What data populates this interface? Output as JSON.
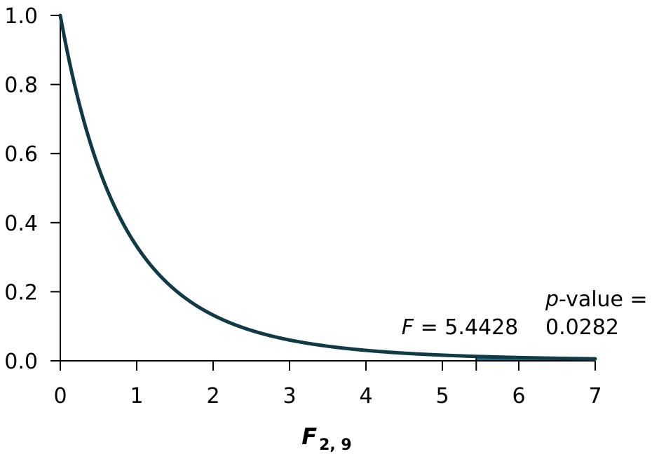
{
  "chart_data": {
    "type": "line",
    "title": "",
    "xlabel": {
      "symbol": "F",
      "subscript": "2, 9"
    },
    "ylabel": "",
    "xlim": [
      0,
      7
    ],
    "ylim": [
      0,
      1.0
    ],
    "x_ticks": [
      "0",
      "1",
      "2",
      "3",
      "4",
      "5",
      "6",
      "7"
    ],
    "y_ticks": [
      "0.0",
      "0.2",
      "0.4",
      "0.6",
      "0.8",
      "1.0"
    ],
    "grid": false,
    "series": [
      {
        "distribution": "F",
        "df1": 2,
        "df2": 9,
        "x_start": 0,
        "x_end": 7,
        "color": "#0f3a46"
      }
    ],
    "shaded_region": {
      "x_from": 5.4428,
      "x_to": 7,
      "color": "#1f6f87"
    },
    "annotations": {
      "f_stat": {
        "symbol": "F",
        "text": " = 5.4428",
        "x_value": 5.4428
      },
      "p_value": {
        "symbol": "p",
        "line1": "-value =",
        "line2": "0.0282"
      }
    }
  }
}
